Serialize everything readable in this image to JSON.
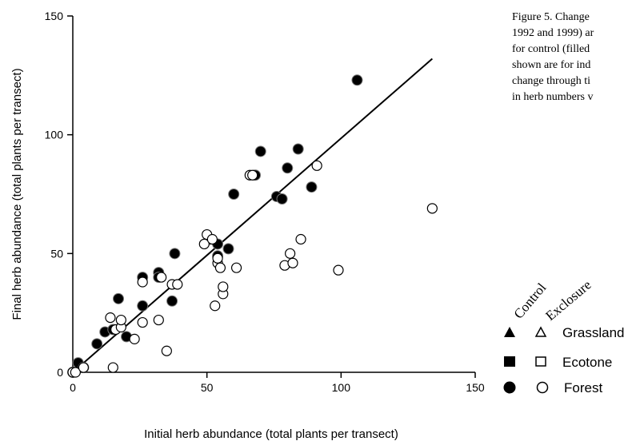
{
  "caption": [
    "Figure 5.   Change",
    "1992 and 1999) ar",
    "for control (filled",
    "shown are for ind",
    "change through ti",
    "in herb numbers v"
  ],
  "legend": {
    "control_label": "Control",
    "exclosure_label": "Exclosure",
    "rows": [
      "Grassland",
      "Ecotone",
      "Forest"
    ]
  },
  "chart_data": {
    "type": "scatter",
    "xlabel": "Initial herb abundance (total plants per transect)",
    "ylabel": "Final herb abundance (total plants per transect)",
    "xlim": [
      0,
      150
    ],
    "ylim": [
      0,
      150
    ],
    "xticks": [
      "0",
      "50",
      "100",
      "150"
    ],
    "yticks": [
      "0",
      "50",
      "100",
      "150"
    ],
    "grid": false,
    "legend_position": "right",
    "regression_line": {
      "x": [
        0,
        134
      ],
      "y": [
        0,
        132
      ]
    },
    "series": [
      {
        "name": "Forest Control",
        "marker": "filled-circle",
        "points": [
          [
            0,
            0
          ],
          [
            2,
            4
          ],
          [
            4,
            2
          ],
          [
            9,
            12
          ],
          [
            12,
            17
          ],
          [
            15,
            18
          ],
          [
            17,
            31
          ],
          [
            20,
            15
          ],
          [
            26,
            28
          ],
          [
            26,
            40
          ],
          [
            32,
            42
          ],
          [
            32,
            40
          ],
          [
            37,
            30
          ],
          [
            38,
            50
          ],
          [
            51,
            56
          ],
          [
            54,
            54
          ],
          [
            54,
            49
          ],
          [
            58,
            52
          ],
          [
            60,
            75
          ],
          [
            68,
            83
          ],
          [
            70,
            93
          ],
          [
            76,
            74
          ],
          [
            78,
            73
          ],
          [
            80,
            86
          ],
          [
            84,
            94
          ],
          [
            89,
            78
          ],
          [
            106,
            123
          ]
        ]
      },
      {
        "name": "Forest Exclosure",
        "marker": "open-circle",
        "points": [
          [
            0,
            0
          ],
          [
            1,
            0
          ],
          [
            4,
            2
          ],
          [
            15,
            2
          ],
          [
            14,
            23
          ],
          [
            16,
            18
          ],
          [
            18,
            19
          ],
          [
            18,
            22
          ],
          [
            23,
            14
          ],
          [
            26,
            21
          ],
          [
            26,
            38
          ],
          [
            32,
            22
          ],
          [
            33,
            40
          ],
          [
            35,
            9
          ],
          [
            37,
            37
          ],
          [
            39,
            37
          ],
          [
            49,
            54
          ],
          [
            50,
            58
          ],
          [
            52,
            56
          ],
          [
            53,
            28
          ],
          [
            54,
            46
          ],
          [
            54,
            48
          ],
          [
            55,
            44
          ],
          [
            56,
            33
          ],
          [
            56,
            36
          ],
          [
            61,
            44
          ],
          [
            66,
            83
          ],
          [
            67,
            83
          ],
          [
            79,
            45
          ],
          [
            81,
            50
          ],
          [
            82,
            46
          ],
          [
            85,
            56
          ],
          [
            91,
            87
          ],
          [
            99,
            43
          ],
          [
            134,
            69
          ]
        ]
      }
    ]
  }
}
